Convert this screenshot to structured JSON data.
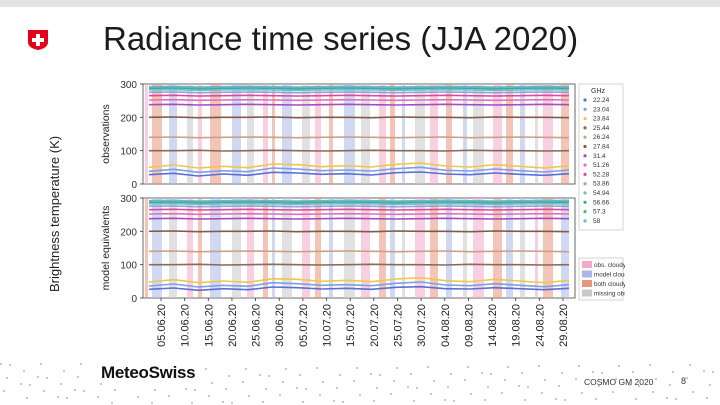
{
  "slide": {
    "title": "Radiance time series (JJA 2020)",
    "outer_ylabel": "Brightness temperature (K)",
    "brand": "MeteoSwiss",
    "footer": "COSMO GM 2020",
    "page": "8"
  },
  "colors": {
    "swiss_red": "#e3001b",
    "obs_cloudy": "#f2a9c8",
    "model_cloudy": "#a9b8e8",
    "both_cloudy": "#e8957e",
    "missing_obs": "#c8c8c8"
  },
  "chart_data": [
    {
      "type": "line",
      "panel": "observations",
      "ylabel": "observations",
      "ylim": [
        0,
        300
      ],
      "yticks": [
        0,
        100,
        200,
        300
      ],
      "x_ticklabels": [
        "05.06.20",
        "10.06.20",
        "15.06.20",
        "20.06.20",
        "25.06.20",
        "30.06.20",
        "05.07.20",
        "10.07.20",
        "15.07.20",
        "20.07.20",
        "25.07.20",
        "30.07.20",
        "04.08.20",
        "09.08.20",
        "14.08.20",
        "19.08.20",
        "24.08.20",
        "29.08.20"
      ],
      "legend_title": "GHz",
      "series": [
        {
          "name": "22.24",
          "values": [
            28,
            32,
            24,
            30,
            26,
            35,
            33,
            29,
            31,
            27,
            34,
            36,
            30,
            28,
            33,
            29,
            26,
            31
          ]
        },
        {
          "name": "23.04",
          "values": [
            38,
            44,
            35,
            40,
            37,
            48,
            45,
            40,
            42,
            39,
            46,
            50,
            41,
            39,
            45,
            40,
            36,
            42
          ]
        },
        {
          "name": "23.84",
          "values": [
            50,
            57,
            48,
            53,
            49,
            60,
            58,
            52,
            55,
            51,
            59,
            63,
            54,
            51,
            58,
            53,
            48,
            55
          ]
        },
        {
          "name": "25.44",
          "values": [
            100,
            100,
            101,
            99,
            100,
            101,
            100,
            99,
            100,
            101,
            100,
            100,
            99,
            101,
            100,
            100,
            99,
            100
          ]
        },
        {
          "name": "26.24",
          "values": [
            140,
            141,
            139,
            140,
            141,
            140,
            139,
            140,
            141,
            140,
            139,
            140,
            141,
            139,
            140,
            141,
            140,
            139
          ]
        },
        {
          "name": "27.84",
          "values": [
            200,
            201,
            199,
            200,
            200,
            201,
            199,
            200,
            200,
            199,
            201,
            200,
            200,
            199,
            201,
            200,
            200,
            199
          ]
        },
        {
          "name": "31.4",
          "values": [
            238,
            239,
            237,
            238,
            239,
            238,
            237,
            238,
            239,
            238,
            237,
            238,
            239,
            238,
            237,
            238,
            239,
            238
          ]
        },
        {
          "name": "51.26",
          "values": [
            252,
            253,
            251,
            252,
            253,
            252,
            251,
            252,
            253,
            252,
            251,
            252,
            253,
            252,
            251,
            252,
            253,
            252
          ]
        },
        {
          "name": "52.28",
          "values": [
            265,
            266,
            264,
            265,
            266,
            265,
            264,
            265,
            266,
            265,
            264,
            265,
            266,
            265,
            264,
            265,
            266,
            265
          ]
        },
        {
          "name": "53.86",
          "values": [
            275,
            276,
            274,
            275,
            276,
            275,
            274,
            275,
            276,
            275,
            274,
            275,
            276,
            275,
            274,
            275,
            276,
            275
          ]
        },
        {
          "name": "54.94",
          "values": [
            282,
            283,
            281,
            282,
            283,
            282,
            281,
            282,
            283,
            282,
            281,
            282,
            283,
            282,
            281,
            282,
            283,
            282
          ]
        },
        {
          "name": "56.66",
          "values": [
            287,
            288,
            286,
            287,
            288,
            287,
            286,
            287,
            288,
            287,
            286,
            287,
            288,
            287,
            286,
            287,
            288,
            287
          ]
        },
        {
          "name": "57.3",
          "values": [
            290,
            291,
            289,
            290,
            291,
            290,
            289,
            290,
            291,
            290,
            289,
            290,
            291,
            290,
            289,
            290,
            291,
            290
          ]
        },
        {
          "name": "58",
          "values": [
            292,
            293,
            291,
            292,
            293,
            292,
            291,
            292,
            293,
            292,
            291,
            292,
            293,
            292,
            291,
            292,
            293,
            292
          ]
        }
      ]
    },
    {
      "type": "line",
      "panel": "model equivalents",
      "ylabel": "model equivalents",
      "ylim": [
        0,
        300
      ],
      "yticks": [
        0,
        100,
        200,
        300
      ],
      "legend": [
        "obs. cloudy",
        "model cloudy",
        "both cloudy",
        "missing obs."
      ],
      "series": [
        {
          "name": "22.24",
          "values": [
            26,
            30,
            23,
            28,
            25,
            33,
            31,
            27,
            29,
            26,
            32,
            34,
            28,
            27,
            31,
            28,
            25,
            29
          ]
        },
        {
          "name": "23.04",
          "values": [
            36,
            42,
            33,
            38,
            35,
            46,
            43,
            38,
            40,
            37,
            44,
            48,
            39,
            37,
            43,
            38,
            34,
            40
          ]
        },
        {
          "name": "23.84",
          "values": [
            48,
            55,
            46,
            51,
            47,
            58,
            56,
            50,
            53,
            49,
            57,
            61,
            52,
            49,
            56,
            51,
            46,
            53
          ]
        },
        {
          "name": "25.44",
          "values": [
            100,
            100,
            101,
            99,
            100,
            101,
            100,
            99,
            100,
            101,
            100,
            100,
            99,
            101,
            100,
            100,
            99,
            100
          ]
        },
        {
          "name": "26.24",
          "values": [
            140,
            141,
            139,
            140,
            141,
            140,
            139,
            140,
            141,
            140,
            139,
            140,
            141,
            139,
            140,
            141,
            140,
            139
          ]
        },
        {
          "name": "27.84",
          "values": [
            200,
            201,
            199,
            200,
            200,
            201,
            199,
            200,
            200,
            199,
            201,
            200,
            200,
            199,
            201,
            200,
            200,
            199
          ]
        },
        {
          "name": "31.4",
          "values": [
            238,
            239,
            237,
            238,
            239,
            238,
            237,
            238,
            239,
            238,
            237,
            238,
            239,
            238,
            237,
            238,
            239,
            238
          ]
        },
        {
          "name": "51.26",
          "values": [
            252,
            253,
            251,
            252,
            253,
            252,
            251,
            252,
            253,
            252,
            251,
            252,
            253,
            252,
            251,
            252,
            253,
            252
          ]
        },
        {
          "name": "52.28",
          "values": [
            265,
            266,
            264,
            265,
            266,
            265,
            264,
            265,
            266,
            265,
            264,
            265,
            266,
            265,
            264,
            265,
            266,
            265
          ]
        },
        {
          "name": "53.86",
          "values": [
            275,
            276,
            274,
            275,
            276,
            275,
            274,
            275,
            276,
            275,
            274,
            275,
            276,
            275,
            274,
            275,
            276,
            275
          ]
        },
        {
          "name": "54.94",
          "values": [
            282,
            283,
            281,
            282,
            283,
            282,
            281,
            282,
            283,
            282,
            281,
            282,
            283,
            282,
            281,
            282,
            283,
            282
          ]
        },
        {
          "name": "56.66",
          "values": [
            287,
            288,
            286,
            287,
            288,
            287,
            286,
            287,
            288,
            287,
            286,
            287,
            288,
            287,
            286,
            287,
            288,
            287
          ]
        },
        {
          "name": "57.3",
          "values": [
            290,
            291,
            289,
            290,
            291,
            290,
            289,
            290,
            291,
            290,
            289,
            290,
            291,
            290,
            289,
            290,
            291,
            290
          ]
        },
        {
          "name": "58",
          "values": [
            292,
            293,
            291,
            292,
            293,
            292,
            291,
            292,
            293,
            292,
            291,
            292,
            293,
            292,
            291,
            292,
            293,
            292
          ]
        }
      ]
    }
  ]
}
